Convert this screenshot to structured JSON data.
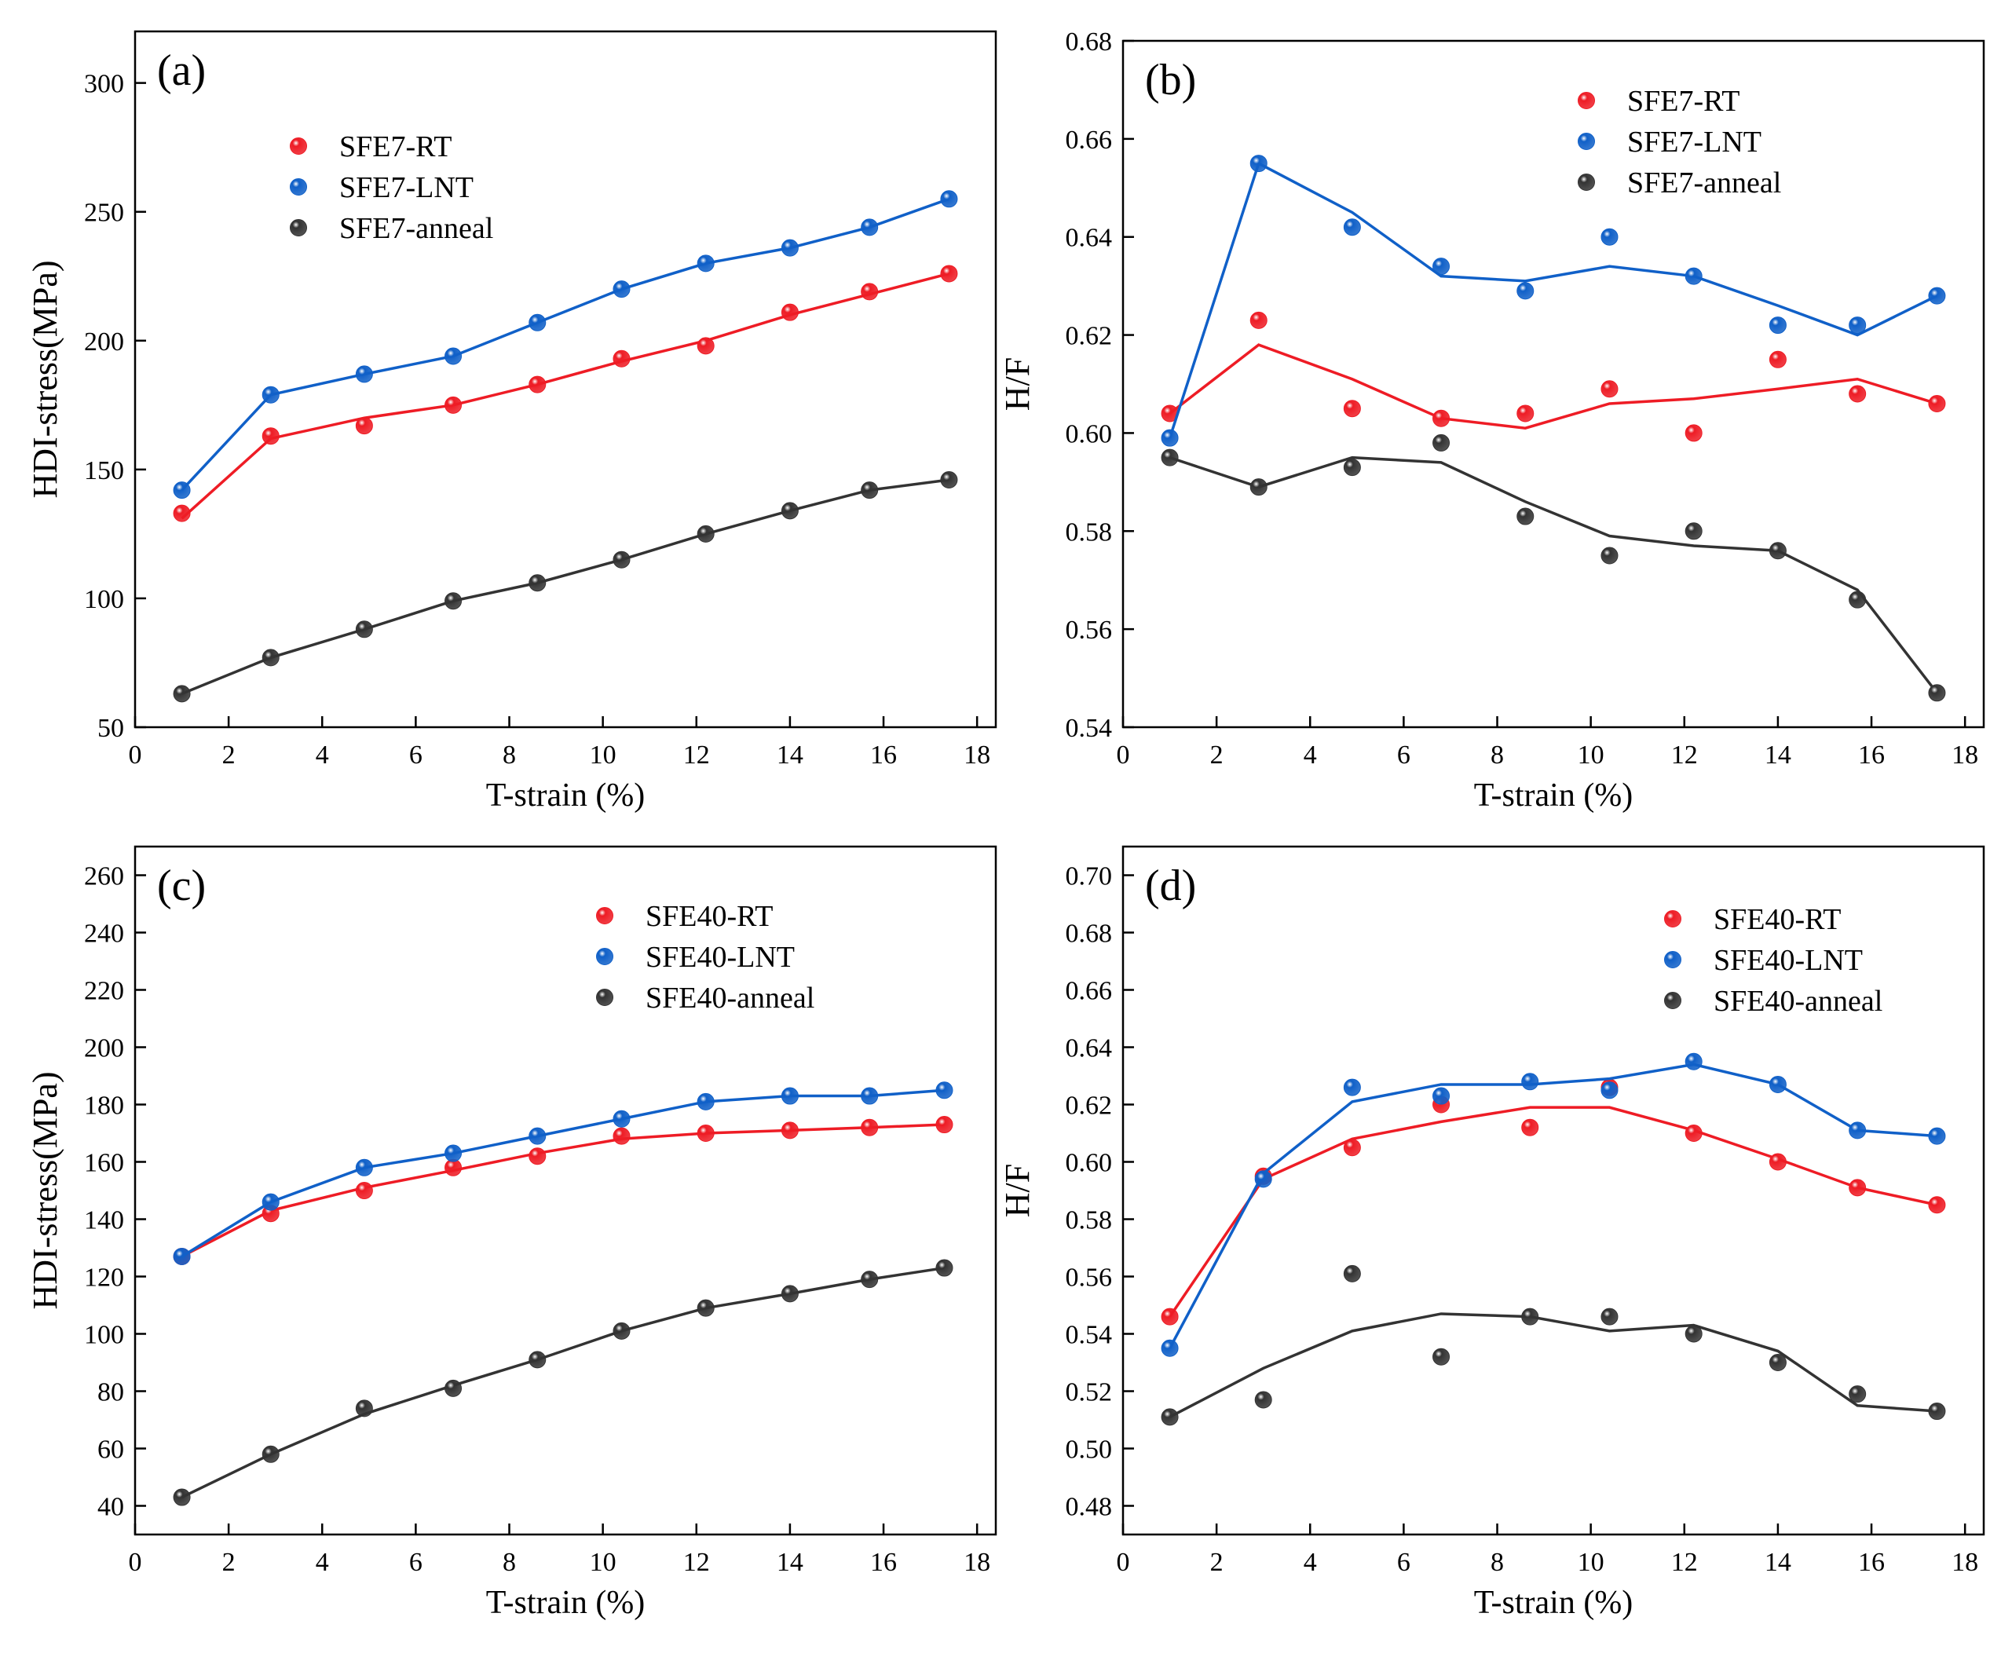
{
  "figure_title": "",
  "colors": {
    "rt": "#ee1c25",
    "lnt": "#1060c8",
    "anneal": "#333333"
  },
  "chart_data": [
    {
      "panel": "(a)",
      "type": "line",
      "xlabel": "T-strain (%)",
      "ylabel": "HDI-stress(MPa)",
      "xlim": [
        0,
        18.4
      ],
      "ylim": [
        50,
        320
      ],
      "xticks": [
        0,
        2,
        4,
        6,
        8,
        10,
        12,
        14,
        16,
        18
      ],
      "yticks": [
        50,
        100,
        150,
        200,
        250,
        300
      ],
      "ytick_decimals": 0,
      "legend": "top-left",
      "series": [
        {
          "name": "SFE7-RT",
          "color_key": "rt",
          "x": [
            1.0,
            2.9,
            4.9,
            6.8,
            8.6,
            10.4,
            12.2,
            14.0,
            15.7,
            17.4
          ],
          "points": [
            133,
            163,
            167,
            175,
            183,
            193,
            198,
            211,
            219,
            226
          ],
          "fit": [
            131,
            162,
            170,
            175,
            183,
            192,
            200,
            210,
            218,
            226
          ]
        },
        {
          "name": "SFE7-LNT",
          "color_key": "lnt",
          "x": [
            1.0,
            2.9,
            4.9,
            6.8,
            8.6,
            10.4,
            12.2,
            14.0,
            15.7,
            17.4
          ],
          "points": [
            142,
            179,
            187,
            194,
            207,
            220,
            230,
            236,
            244,
            255
          ],
          "fit": [
            142,
            179,
            187,
            194,
            207,
            220,
            230,
            236,
            244,
            255
          ]
        },
        {
          "name": "SFE7-anneal",
          "color_key": "anneal",
          "x": [
            1.0,
            2.9,
            4.9,
            6.8,
            8.6,
            10.4,
            12.2,
            14.0,
            15.7,
            17.4
          ],
          "points": [
            63,
            77,
            88,
            99,
            106,
            115,
            125,
            134,
            142,
            146
          ],
          "fit": [
            63,
            77,
            88,
            99,
            106,
            115,
            125,
            134,
            142,
            146
          ]
        }
      ]
    },
    {
      "panel": "(b)",
      "type": "line",
      "xlabel": "T-strain (%)",
      "ylabel": "H/F",
      "xlim": [
        0,
        18.4
      ],
      "ylim": [
        0.54,
        0.68
      ],
      "xticks": [
        0,
        2,
        4,
        6,
        8,
        10,
        12,
        14,
        16,
        18
      ],
      "yticks": [
        0.54,
        0.56,
        0.58,
        0.6,
        0.62,
        0.64,
        0.66,
        0.68
      ],
      "ytick_decimals": 2,
      "legend": "top-right",
      "series": [
        {
          "name": "SFE7-RT",
          "color_key": "rt",
          "x": [
            1.0,
            2.9,
            4.9,
            6.8,
            8.6,
            10.4,
            12.2,
            14.0,
            15.7,
            17.4
          ],
          "points": [
            0.604,
            0.623,
            0.605,
            0.603,
            0.604,
            0.609,
            0.6,
            0.615,
            0.608,
            0.606
          ],
          "fit": [
            0.604,
            0.618,
            0.611,
            0.603,
            0.601,
            0.606,
            0.607,
            0.609,
            0.611,
            0.606
          ]
        },
        {
          "name": "SFE7-LNT",
          "color_key": "lnt",
          "x": [
            1.0,
            2.9,
            4.9,
            6.8,
            8.6,
            10.4,
            12.2,
            14.0,
            15.7,
            17.4
          ],
          "points": [
            0.599,
            0.655,
            0.642,
            0.634,
            0.629,
            0.64,
            0.632,
            0.622,
            0.622,
            0.628
          ],
          "fit": [
            0.599,
            0.655,
            0.645,
            0.632,
            0.631,
            0.634,
            0.632,
            0.626,
            0.62,
            0.628
          ]
        },
        {
          "name": "SFE7-anneal",
          "color_key": "anneal",
          "x": [
            1.0,
            2.9,
            4.9,
            6.8,
            8.6,
            10.4,
            12.2,
            14.0,
            15.7,
            17.4
          ],
          "points": [
            0.595,
            0.589,
            0.593,
            0.598,
            0.583,
            0.575,
            0.58,
            0.576,
            0.566,
            0.547
          ],
          "fit": [
            0.595,
            0.589,
            0.595,
            0.594,
            0.586,
            0.579,
            0.577,
            0.576,
            0.568,
            0.547
          ]
        }
      ]
    },
    {
      "panel": "(c)",
      "type": "line",
      "xlabel": "T-strain (%)",
      "ylabel": "HDI-stress(MPa)",
      "xlim": [
        0,
        18.4
      ],
      "ylim": [
        30,
        270
      ],
      "xticks": [
        0,
        2,
        4,
        6,
        8,
        10,
        12,
        14,
        16,
        18
      ],
      "yticks": [
        40,
        60,
        80,
        100,
        120,
        140,
        160,
        180,
        200,
        220,
        240,
        260
      ],
      "ytick_decimals": 0,
      "legend": "top-right",
      "series": [
        {
          "name": "SFE40-RT",
          "color_key": "rt",
          "x": [
            1.0,
            2.9,
            4.9,
            6.8,
            8.6,
            10.4,
            12.2,
            14.0,
            15.7,
            17.3
          ],
          "points": [
            127,
            142,
            150,
            158,
            162,
            169,
            170,
            171,
            172,
            173
          ],
          "fit": [
            127,
            143,
            151,
            157,
            163,
            168,
            170,
            171,
            172,
            173
          ]
        },
        {
          "name": "SFE40-LNT",
          "color_key": "lnt",
          "x": [
            1.0,
            2.9,
            4.9,
            6.8,
            8.6,
            10.4,
            12.2,
            14.0,
            15.7,
            17.3
          ],
          "points": [
            127,
            146,
            158,
            163,
            169,
            175,
            181,
            183,
            183,
            185
          ],
          "fit": [
            127,
            146,
            158,
            163,
            169,
            175,
            181,
            183,
            183,
            185
          ]
        },
        {
          "name": "SFE40-anneal",
          "color_key": "anneal",
          "x": [
            1.0,
            2.9,
            4.9,
            6.8,
            8.6,
            10.4,
            12.2,
            14.0,
            15.7,
            17.3
          ],
          "points": [
            43,
            58,
            74,
            81,
            91,
            101,
            109,
            114,
            119,
            123
          ],
          "fit": [
            43,
            58,
            72,
            82,
            91,
            101,
            109,
            114,
            119,
            123
          ]
        }
      ]
    },
    {
      "panel": "(d)",
      "type": "line",
      "xlabel": "T-strain (%)",
      "ylabel": "H/F",
      "xlim": [
        0,
        18.4
      ],
      "ylim": [
        0.47,
        0.71
      ],
      "xticks": [
        0,
        2,
        4,
        6,
        8,
        10,
        12,
        14,
        16,
        18
      ],
      "yticks": [
        0.48,
        0.5,
        0.52,
        0.54,
        0.56,
        0.58,
        0.6,
        0.62,
        0.64,
        0.66,
        0.68,
        0.7
      ],
      "ytick_decimals": 2,
      "legend": "top-right",
      "series": [
        {
          "name": "SFE40-RT",
          "color_key": "rt",
          "x": [
            1.0,
            3.0,
            4.9,
            6.8,
            8.7,
            10.4,
            12.2,
            14.0,
            15.7,
            17.4
          ],
          "points": [
            0.546,
            0.595,
            0.605,
            0.62,
            0.612,
            0.626,
            0.61,
            0.6,
            0.591,
            0.585
          ],
          "fit": [
            0.546,
            0.594,
            0.608,
            0.614,
            0.619,
            0.619,
            0.611,
            0.601,
            0.591,
            0.585
          ]
        },
        {
          "name": "SFE40-LNT",
          "color_key": "lnt",
          "x": [
            1.0,
            3.0,
            4.9,
            6.8,
            8.7,
            10.4,
            12.2,
            14.0,
            15.7,
            17.4
          ],
          "points": [
            0.535,
            0.594,
            0.626,
            0.623,
            0.628,
            0.625,
            0.635,
            0.627,
            0.611,
            0.609
          ],
          "fit": [
            0.535,
            0.596,
            0.621,
            0.627,
            0.627,
            0.629,
            0.634,
            0.627,
            0.611,
            0.609
          ]
        },
        {
          "name": "SFE40-anneal",
          "color_key": "anneal",
          "x": [
            1.0,
            3.0,
            4.9,
            6.8,
            8.7,
            10.4,
            12.2,
            14.0,
            15.7,
            17.4
          ],
          "points": [
            0.511,
            0.517,
            0.561,
            0.532,
            0.546,
            0.546,
            0.54,
            0.53,
            0.519,
            0.513
          ],
          "fit": [
            0.511,
            0.528,
            0.541,
            0.547,
            0.546,
            0.541,
            0.543,
            0.534,
            0.515,
            0.513
          ]
        }
      ]
    }
  ]
}
